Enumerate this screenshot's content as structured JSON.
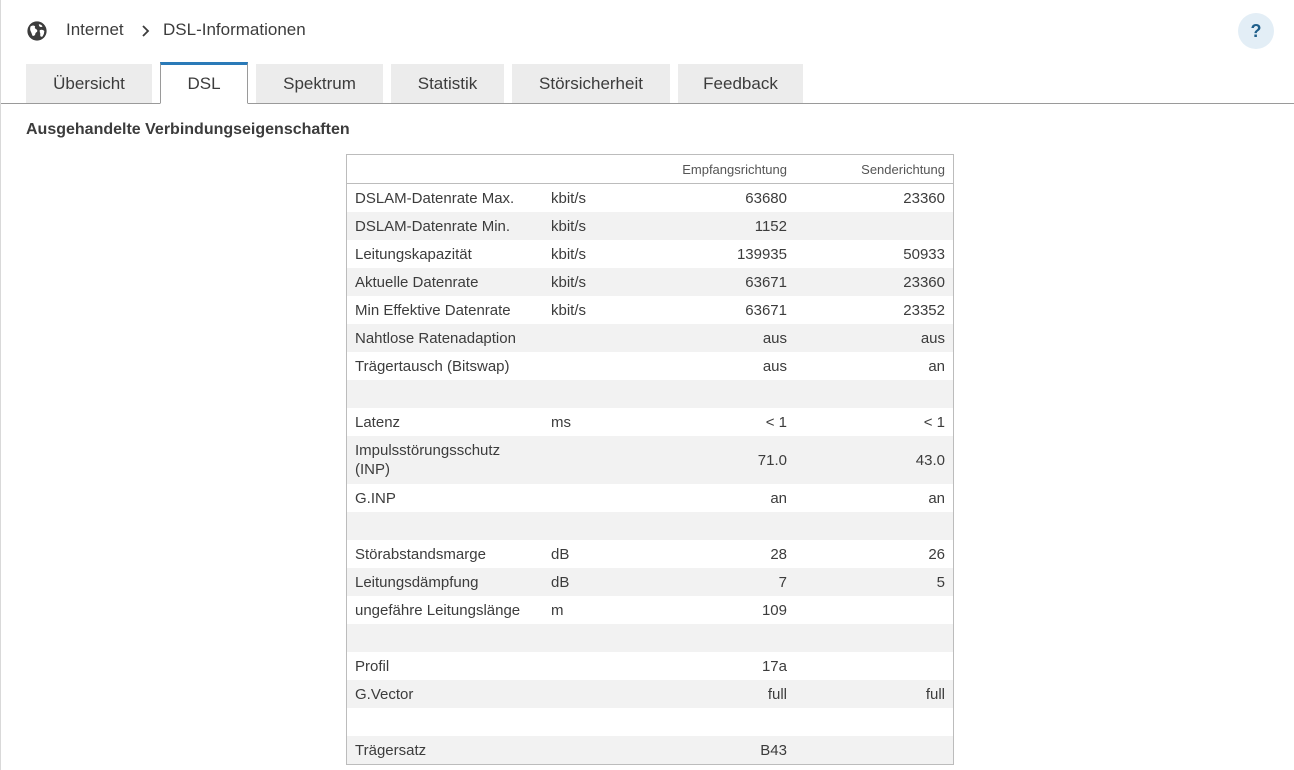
{
  "breadcrumb": {
    "icon": "globe-icon",
    "parent": "Internet",
    "current": "DSL-Informationen"
  },
  "help": {
    "label": "?"
  },
  "tabs": [
    {
      "label": "Übersicht",
      "active": false
    },
    {
      "label": "DSL",
      "active": true
    },
    {
      "label": "Spektrum",
      "active": false
    },
    {
      "label": "Statistik",
      "active": false
    },
    {
      "label": "Störsicherheit",
      "active": false
    },
    {
      "label": "Feedback",
      "active": false
    }
  ],
  "section": {
    "title": "Ausgehandelte Verbindungseigenschaften"
  },
  "table": {
    "headers": {
      "label": "",
      "unit": "",
      "down": "Empfangsrichtung",
      "up": "Senderichtung"
    },
    "rows": [
      {
        "label": "DSLAM-Datenrate Max.",
        "unit": "kbit/s",
        "down": "63680",
        "up": "23360"
      },
      {
        "label": "DSLAM-Datenrate Min.",
        "unit": "kbit/s",
        "down": "1152",
        "up": ""
      },
      {
        "label": "Leitungskapazität",
        "unit": "kbit/s",
        "down": "139935",
        "up": "50933"
      },
      {
        "label": "Aktuelle Datenrate",
        "unit": "kbit/s",
        "down": "63671",
        "up": "23360"
      },
      {
        "label": "Min Effektive Datenrate",
        "unit": "kbit/s",
        "down": "63671",
        "up": "23352"
      },
      {
        "label": "Nahtlose Ratenadaption",
        "unit": "",
        "down": "aus",
        "up": "aus"
      },
      {
        "label": "Trägertausch (Bitswap)",
        "unit": "",
        "down": "aus",
        "up": "an"
      },
      {
        "label": "",
        "unit": "",
        "down": "",
        "up": ""
      },
      {
        "label": "Latenz",
        "unit": "ms",
        "down": "< 1",
        "up": "< 1"
      },
      {
        "label": "Impulsstörungsschutz (INP)",
        "unit": "",
        "down": "71.0",
        "up": "43.0"
      },
      {
        "label": "G.INP",
        "unit": "",
        "down": "an",
        "up": "an"
      },
      {
        "label": "",
        "unit": "",
        "down": "",
        "up": ""
      },
      {
        "label": "Störabstandsmarge",
        "unit": "dB",
        "down": "28",
        "up": "26"
      },
      {
        "label": "Leitungsdämpfung",
        "unit": "dB",
        "down": "7",
        "up": "5"
      },
      {
        "label": "ungefähre Leitungslänge",
        "unit": "m",
        "down": "109",
        "up": ""
      },
      {
        "label": "",
        "unit": "",
        "down": "",
        "up": ""
      },
      {
        "label": "Profil",
        "unit": "",
        "down": "17a",
        "up": ""
      },
      {
        "label": "G.Vector",
        "unit": "",
        "down": "full",
        "up": "full"
      },
      {
        "label": "",
        "unit": "",
        "down": "",
        "up": ""
      },
      {
        "label": "Trägersatz",
        "unit": "",
        "down": "B43",
        "up": ""
      }
    ]
  },
  "colors": {
    "accent": "#2a7ab8",
    "tab_bg": "#ececec",
    "row_alt": "#f2f2f2",
    "help_bg": "#e3eef6"
  }
}
